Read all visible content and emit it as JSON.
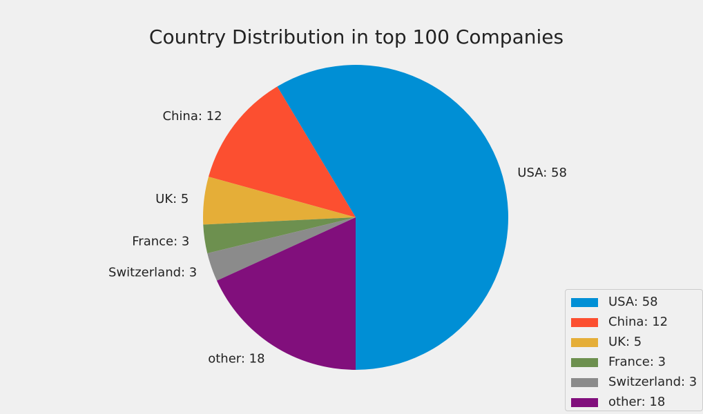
{
  "chart_data": {
    "type": "pie",
    "title": "Country Distribution in top 100 Companies",
    "slices": [
      {
        "label": "USA: 58",
        "value": 58,
        "color": "#008fd5"
      },
      {
        "label": "China: 12",
        "value": 12,
        "color": "#fc4f30"
      },
      {
        "label": "UK: 5",
        "value": 5,
        "color": "#e5ae38"
      },
      {
        "label": "France: 3",
        "value": 3,
        "color": "#6d904f"
      },
      {
        "label": "Switzerland: 3",
        "value": 3,
        "color": "#8b8b8b"
      },
      {
        "label": "other: 18",
        "value": 18,
        "color": "#810f7c"
      }
    ],
    "start_angle_deg": -90,
    "direction": "counterclockwise",
    "legend": {
      "placement": "bottom-right",
      "entries": [
        "USA: 58",
        "China: 12",
        "UK: 5",
        "France: 3",
        "Switzerland: 3",
        "other: 18"
      ]
    }
  }
}
